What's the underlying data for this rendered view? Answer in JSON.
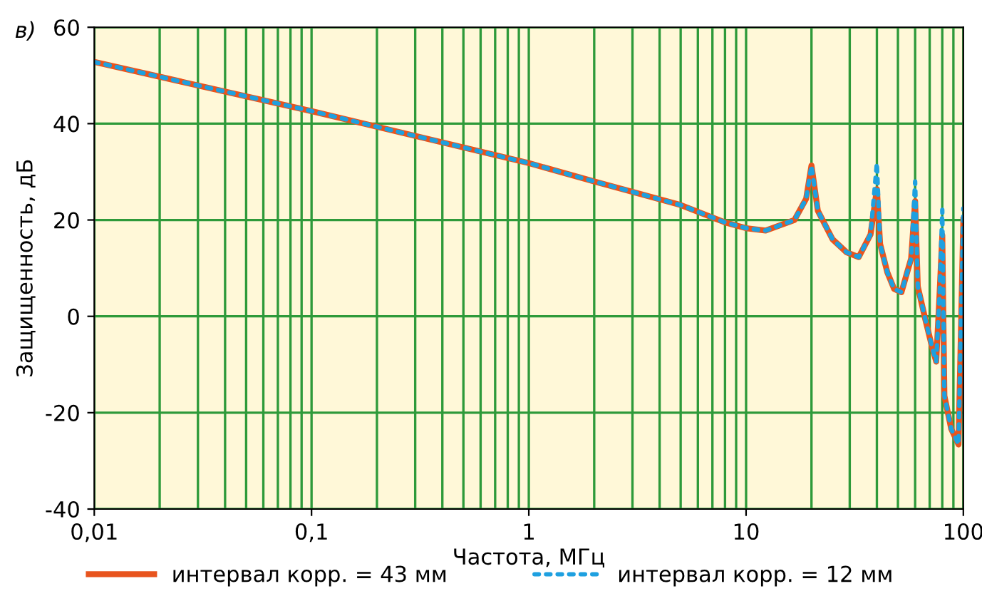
{
  "chart_data": {
    "type": "line",
    "xlabel": "Частота, МГц",
    "ylabel": "Защищенность, дБ",
    "annotations": [
      "в)"
    ],
    "log": "x",
    "xlim": [
      0.01,
      100
    ],
    "ylim": [
      -40,
      60
    ],
    "xticks": [
      {
        "value": 0.01,
        "label": "0,01"
      },
      {
        "value": 0.1,
        "label": "0,1"
      },
      1,
      10,
      100
    ],
    "yticks": [
      -40,
      -20,
      0,
      20,
      40,
      60
    ],
    "grid": true,
    "legend": "bottom",
    "x": [
      0.01,
      0.1,
      1,
      2,
      5,
      8,
      10,
      12.3,
      16.7,
      18.9,
      20,
      21.4,
      25,
      29,
      33,
      37.4,
      40,
      41.4,
      44.7,
      48,
      51.9,
      57.5,
      60,
      61.7,
      66.8,
      72,
      75,
      77.8,
      80,
      81.8,
      88,
      95,
      100
    ],
    "series": [
      {
        "name": "интервал корр. = 43 мм",
        "color": "#e8541e",
        "line_style": "solid",
        "values": [
          52.8,
          42.6,
          31.8,
          28,
          23.1,
          19.5,
          18.3,
          17.8,
          20,
          24.4,
          31.3,
          21.9,
          16,
          13.3,
          12.3,
          17,
          26.4,
          15,
          9.1,
          5.7,
          5,
          12,
          23.9,
          6.2,
          -0.6,
          -6.6,
          -9.4,
          5,
          16.8,
          -16.5,
          -23.4,
          -26.6,
          20
        ]
      },
      {
        "name": "интервал корр. = 12 мм",
        "color": "#1ea0e0",
        "line_style": "dotted",
        "values": [
          52.8,
          42.6,
          31.8,
          28,
          23.1,
          19.5,
          18.3,
          17.8,
          20,
          24.4,
          31.3,
          21.9,
          16,
          13.3,
          12.3,
          17,
          31.8,
          15,
          9.1,
          5.7,
          5,
          12,
          28,
          6.2,
          -0.6,
          -6.6,
          -9.4,
          5,
          22.1,
          -16.5,
          -23.4,
          -26.6,
          22.4
        ]
      }
    ]
  }
}
